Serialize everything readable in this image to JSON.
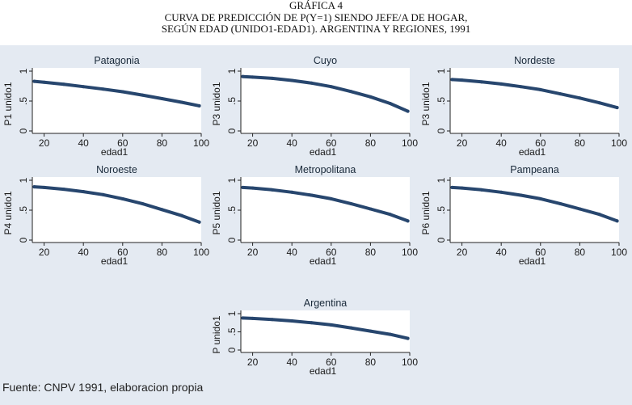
{
  "header": {
    "line1": "GRÁFICA 4",
    "line2": "CURVA DE PREDICCIÓN DE P(Y=1) SIENDO JEFE/A DE HOGAR,",
    "line3": "SEGÚN EDAD (UNIDO1-EDAD1). ARGENTINA Y REGIONES, 1991"
  },
  "footer": {
    "source": "Fuente: CNPV 1991, elaboracion propia"
  },
  "colors": {
    "line": "#27466e",
    "plot_bg": "#e4eaf2",
    "panel_bg": "#ffffff"
  },
  "chart_data": [
    {
      "type": "line",
      "title": "Patagonia",
      "xlabel": "edad1",
      "ylabel": "P1 unido1",
      "xlim": [
        14,
        100
      ],
      "ylim": [
        0,
        1
      ],
      "xticks": [
        "20",
        "40",
        "60",
        "80",
        "100"
      ],
      "yticks": [
        "0",
        ".5",
        "1"
      ],
      "x": [
        15,
        20,
        30,
        40,
        50,
        60,
        70,
        80,
        90,
        99
      ],
      "y": [
        0.83,
        0.815,
        0.78,
        0.74,
        0.7,
        0.655,
        0.6,
        0.54,
        0.48,
        0.42
      ]
    },
    {
      "type": "line",
      "title": "Cuyo",
      "xlabel": "edad1",
      "ylabel": "P3 unido1",
      "xlim": [
        14,
        100
      ],
      "ylim": [
        0,
        1
      ],
      "xticks": [
        "20",
        "40",
        "60",
        "80",
        "100"
      ],
      "yticks": [
        "0",
        ".5",
        "1"
      ],
      "x": [
        15,
        20,
        30,
        40,
        50,
        60,
        70,
        80,
        90,
        99
      ],
      "y": [
        0.91,
        0.9,
        0.88,
        0.845,
        0.8,
        0.74,
        0.66,
        0.57,
        0.46,
        0.33
      ]
    },
    {
      "type": "line",
      "title": "Nordeste",
      "xlabel": "edad1",
      "ylabel": "P3 unido1",
      "xlim": [
        14,
        100
      ],
      "ylim": [
        0,
        1
      ],
      "xticks": [
        "20",
        "40",
        "60",
        "80",
        "100"
      ],
      "yticks": [
        "0",
        ".5",
        "1"
      ],
      "x": [
        15,
        20,
        30,
        40,
        50,
        60,
        70,
        80,
        90,
        99
      ],
      "y": [
        0.86,
        0.85,
        0.82,
        0.785,
        0.74,
        0.69,
        0.62,
        0.55,
        0.47,
        0.39
      ]
    },
    {
      "type": "line",
      "title": "Noroeste",
      "xlabel": "edad1",
      "ylabel": "P4 unido1",
      "xlim": [
        14,
        100
      ],
      "ylim": [
        0,
        1
      ],
      "xticks": [
        "20",
        "40",
        "60",
        "80",
        "100"
      ],
      "yticks": [
        "0",
        ".5",
        "1"
      ],
      "x": [
        15,
        20,
        30,
        40,
        50,
        60,
        70,
        80,
        90,
        99
      ],
      "y": [
        0.89,
        0.88,
        0.85,
        0.81,
        0.76,
        0.69,
        0.61,
        0.51,
        0.41,
        0.3
      ]
    },
    {
      "type": "line",
      "title": "Metropolitana",
      "xlabel": "edad1",
      "ylabel": "P5 unido1",
      "xlim": [
        14,
        100
      ],
      "ylim": [
        0,
        1
      ],
      "xticks": [
        "20",
        "40",
        "60",
        "80",
        "100"
      ],
      "yticks": [
        "0",
        ".5",
        "1"
      ],
      "x": [
        15,
        20,
        30,
        40,
        50,
        60,
        70,
        80,
        90,
        99
      ],
      "y": [
        0.88,
        0.87,
        0.84,
        0.8,
        0.75,
        0.69,
        0.61,
        0.52,
        0.43,
        0.32
      ]
    },
    {
      "type": "line",
      "title": "Pampeana",
      "xlabel": "edad1",
      "ylabel": "P6 unido1",
      "xlim": [
        14,
        100
      ],
      "ylim": [
        0,
        1
      ],
      "xticks": [
        "20",
        "40",
        "60",
        "80",
        "100"
      ],
      "yticks": [
        "0",
        ".5",
        "1"
      ],
      "x": [
        15,
        20,
        30,
        40,
        50,
        60,
        70,
        80,
        90,
        99
      ],
      "y": [
        0.88,
        0.87,
        0.84,
        0.8,
        0.75,
        0.69,
        0.61,
        0.52,
        0.43,
        0.32
      ]
    },
    {
      "type": "line",
      "title": "Argentina",
      "xlabel": "edad1",
      "ylabel": "P unido1",
      "xlim": [
        14,
        100
      ],
      "ylim": [
        0,
        1
      ],
      "xticks": [
        "20",
        "40",
        "60",
        "80",
        "100"
      ],
      "yticks": [
        "0",
        ".5",
        "1"
      ],
      "x": [
        15,
        20,
        30,
        40,
        50,
        60,
        70,
        80,
        90,
        99
      ],
      "y": [
        0.88,
        0.87,
        0.84,
        0.8,
        0.75,
        0.69,
        0.61,
        0.52,
        0.43,
        0.32
      ]
    }
  ]
}
